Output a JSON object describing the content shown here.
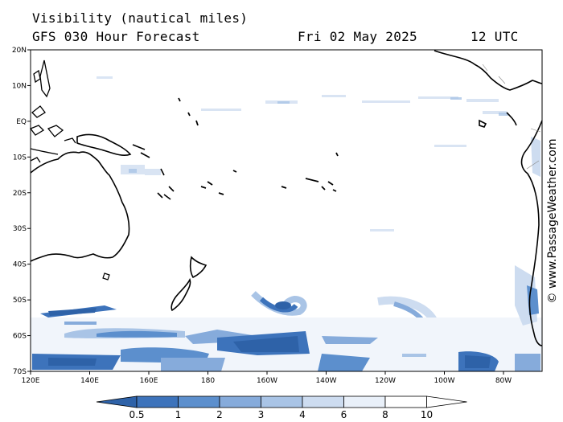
{
  "header": {
    "title": "Visibility (nautical miles)",
    "subtitle": "GFS 030 Hour Forecast",
    "date": "Fri 02 May 2025",
    "time": "12 UTC"
  },
  "axes": {
    "lat_labels": [
      "20N",
      "10N",
      "EQ",
      "10S",
      "20S",
      "30S",
      "40S",
      "50S",
      "60S",
      "70S"
    ],
    "lon_labels": [
      "120E",
      "140E",
      "160E",
      "180",
      "160W",
      "140W",
      "120W",
      "100W",
      "80W"
    ]
  },
  "credit": "© www.PassageWeather.com",
  "colorbar": {
    "labels": [
      "0.5",
      "1",
      "2",
      "3",
      "4",
      "6",
      "8",
      "10"
    ],
    "colors": [
      "#2e62a8",
      "#3d73bb",
      "#5c8fcd",
      "#86abdb",
      "#a9c4e6",
      "#cddcf0",
      "#e9f0f9",
      "#ffffff"
    ]
  }
}
